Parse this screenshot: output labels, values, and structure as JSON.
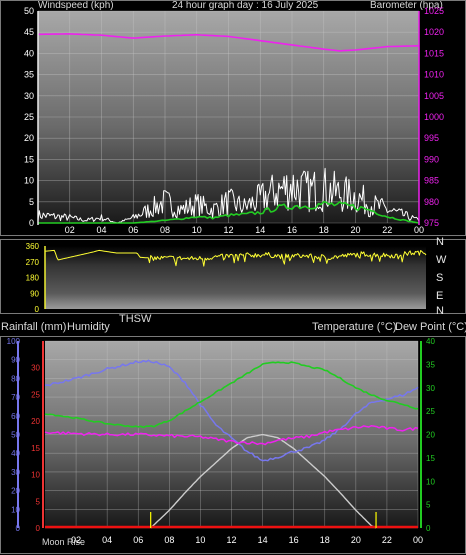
{
  "top_panel": {
    "title_left": "Windspeed (kph)",
    "title_center": "24 hour graph day : 16 July 2025",
    "title_right": "Barometer (hpa)"
  },
  "direction_panel": {
    "compass_labels": [
      "N",
      "W",
      "S",
      "E",
      "N"
    ]
  },
  "bottom_panel": {
    "title_rainfall": "Rainfall (mm)",
    "title_humidity": "Humidity",
    "title_thsw": "THSW",
    "title_temperature": "Temperature (°C)",
    "title_dewpoint": "Dew Point (°C)",
    "moon_label": "Moon Rise"
  },
  "colors": {
    "wind_speed": "#ffffff",
    "wind_average": "#22cc22",
    "barometer": "#ee22ee",
    "direction": "#ffff33",
    "humidity": "#7777ee",
    "temperature": "#22cc22",
    "dew_point": "#ee22ee",
    "sun": "#cccccc",
    "rainfall": "#ee1111",
    "moon": "#ffff00"
  },
  "chart_data": [
    {
      "type": "line",
      "name": "wind-barometer",
      "x_ticks": [
        "02",
        "04",
        "06",
        "08",
        "10",
        "12",
        "14",
        "16",
        "18",
        "20",
        "22",
        "00"
      ],
      "y_left_ticks": [
        0,
        5,
        10,
        15,
        20,
        25,
        30,
        35,
        40,
        45,
        50
      ],
      "y_left_range": [
        0,
        50
      ],
      "y_right_ticks": [
        975,
        980,
        985,
        990,
        995,
        1000,
        1005,
        1010,
        1015,
        1020,
        1025
      ],
      "y_right_range": [
        975,
        1025
      ],
      "grid": true,
      "series": [
        {
          "key": "barometer",
          "axis": "right",
          "x": [
            0,
            2,
            4,
            6,
            8,
            10,
            12,
            14,
            16,
            18,
            19,
            20,
            22,
            24
          ],
          "values": [
            1019.5,
            1019.6,
            1019.3,
            1018.6,
            1019.1,
            1019.4,
            1019.0,
            1018.0,
            1017.0,
            1016.0,
            1015.6,
            1015.8,
            1016.6,
            1016.8
          ]
        },
        {
          "key": "wind_gust",
          "axis": "left",
          "x": [
            0,
            2,
            3,
            4,
            5,
            6,
            7,
            8,
            9,
            10,
            11,
            12,
            13,
            14,
            15,
            16,
            17,
            18,
            19,
            20,
            21,
            22,
            23,
            24
          ],
          "values": [
            3,
            2,
            1,
            2,
            0,
            2,
            5,
            8,
            5,
            7,
            5,
            8,
            6,
            9,
            12,
            14,
            12,
            13,
            11,
            10,
            7,
            5,
            3,
            1
          ]
        },
        {
          "key": "wind_average",
          "axis": "left",
          "x": [
            0,
            4,
            6,
            7,
            8,
            9,
            10,
            11,
            12,
            13,
            14,
            15,
            16,
            17,
            18,
            19,
            20,
            21,
            22,
            23,
            24
          ],
          "values": [
            0,
            0,
            0,
            0.3,
            0.6,
            1,
            1.5,
            1.2,
            1.8,
            2,
            2.5,
            3.5,
            4,
            4,
            4.5,
            4.2,
            3.8,
            3,
            1.5,
            0.7,
            0
          ]
        }
      ]
    },
    {
      "type": "line",
      "name": "wind-direction",
      "y_ticks": [
        0,
        90,
        180,
        270,
        360
      ],
      "y_range": [
        0,
        360
      ],
      "x_range": [
        0,
        24
      ],
      "series": [
        {
          "key": "direction",
          "x": [
            0,
            0.6,
            0.8,
            3,
            3.4,
            4.5,
            5.8,
            6,
            7,
            8,
            9,
            10,
            11,
            12,
            13,
            14,
            15,
            16,
            17,
            18,
            19,
            20,
            21,
            22,
            23,
            24
          ],
          "values": [
            330,
            335,
            280,
            325,
            335,
            320,
            320,
            295,
            290,
            292,
            288,
            290,
            300,
            305,
            308,
            310,
            300,
            305,
            300,
            295,
            305,
            315,
            310,
            305,
            320,
            322
          ]
        }
      ]
    },
    {
      "type": "line",
      "name": "temperature-humidity",
      "x_ticks": [
        "02",
        "04",
        "06",
        "08",
        "10",
        "12",
        "14",
        "16",
        "18",
        "20",
        "22",
        "00"
      ],
      "x_range": [
        0,
        24
      ],
      "y_humidity_ticks": [
        0,
        10,
        20,
        30,
        40,
        50,
        60,
        70,
        80,
        90,
        100
      ],
      "y_rain_ticks": [
        0,
        5,
        10,
        15,
        20,
        25,
        30
      ],
      "y_temp_ticks": [
        0,
        5,
        10,
        15,
        20,
        25,
        30,
        35,
        40
      ],
      "y_temp_range": [
        0,
        40
      ],
      "y_humidity_range": [
        0,
        100
      ],
      "grid": true,
      "series": [
        {
          "key": "humidity",
          "x": [
            0,
            2,
            4,
            6,
            7,
            8,
            9,
            10,
            11,
            12,
            13,
            14,
            15,
            16,
            17,
            18,
            19,
            20,
            21,
            22,
            23,
            24
          ],
          "values": [
            76,
            80,
            85,
            89,
            89,
            86,
            78,
            66,
            55,
            48,
            41,
            36,
            38,
            41,
            43,
            47,
            53,
            61,
            67,
            69,
            71,
            75
          ]
        },
        {
          "key": "temperature",
          "x": [
            0,
            2,
            4,
            6,
            7,
            8,
            9,
            10,
            11,
            12,
            13,
            14,
            15,
            16,
            17,
            18,
            19,
            20,
            21,
            22,
            23,
            24
          ],
          "values": [
            24.5,
            23.5,
            22.3,
            21.6,
            21.8,
            23,
            25,
            27,
            29,
            31,
            33,
            35,
            35.5,
            35.3,
            34.5,
            33.8,
            32,
            30,
            28.5,
            27.3,
            26.5,
            25.5
          ]
        },
        {
          "key": "dew_point",
          "x": [
            0,
            2,
            4,
            6,
            8,
            10,
            11,
            12,
            13,
            14,
            15,
            16,
            17,
            18,
            19,
            20,
            21,
            22,
            23,
            24
          ],
          "values": [
            20.5,
            20.2,
            20.0,
            20.0,
            19.7,
            19.5,
            19.0,
            18.5,
            18.3,
            18.0,
            18.8,
            19.2,
            19.6,
            20.5,
            21.0,
            21.5,
            21.8,
            21.3,
            21.0,
            21.3
          ]
        },
        {
          "key": "sun",
          "x": [
            6.8,
            8,
            9,
            10,
            11,
            12,
            13,
            14,
            15,
            16,
            17,
            18,
            19,
            20,
            21,
            21.3
          ],
          "values": [
            0,
            3.8,
            7.5,
            11,
            14,
            17,
            19.3,
            20,
            19.3,
            17,
            14,
            11,
            7.5,
            3.8,
            0.5,
            0
          ]
        },
        {
          "key": "rainfall",
          "x": [
            0,
            24
          ],
          "values": [
            0,
            0
          ]
        }
      ],
      "moon_markers_x": [
        6.8,
        21.3
      ]
    }
  ]
}
